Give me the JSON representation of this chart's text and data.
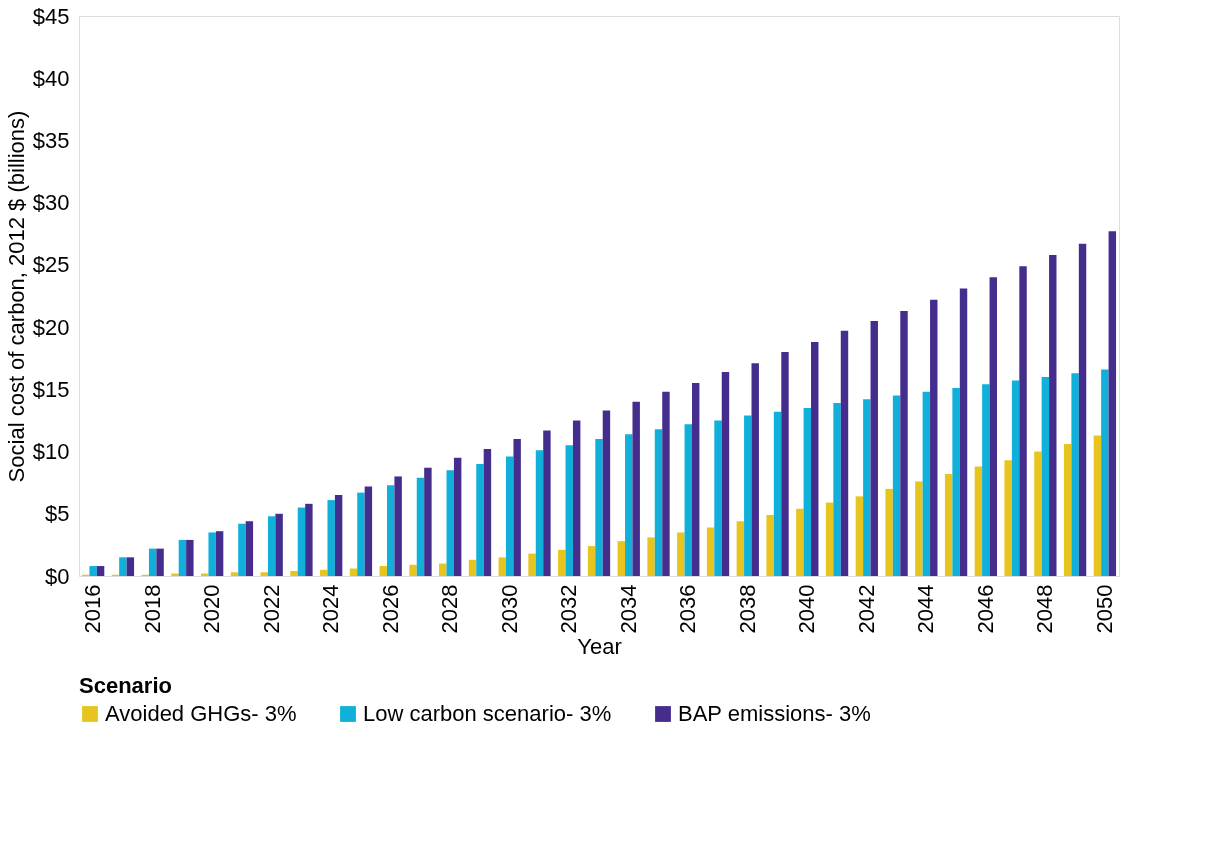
{
  "chart_data": {
    "type": "bar",
    "xlabel": "Year",
    "ylabel": "Social cost of carbon, 2012 $ (billions)",
    "legend_title": "Scenario",
    "legend": "bottom",
    "grid": false,
    "categories": [
      "2016",
      null,
      "2018",
      null,
      "2020",
      null,
      "2022",
      null,
      "2024",
      null,
      "2026",
      null,
      "2028",
      null,
      "2030",
      null,
      "2032",
      null,
      "2034",
      null,
      "2036",
      null,
      "2038",
      null,
      "2040",
      null,
      "2042",
      null,
      "2044",
      null,
      "2046",
      null,
      "2048",
      null,
      "2050"
    ],
    "ylim": [
      0,
      45
    ],
    "yticks": [
      {
        "value": 0,
        "label": "$0"
      },
      {
        "value": 5,
        "label": "$5"
      },
      {
        "value": 10,
        "label": "$10"
      },
      {
        "value": 15,
        "label": "$15"
      },
      {
        "value": 20,
        "label": "$20"
      },
      {
        "value": 25,
        "label": "$25"
      },
      {
        "value": 30,
        "label": "$30"
      },
      {
        "value": 35,
        "label": "$35"
      },
      {
        "value": 40,
        "label": "$40"
      },
      {
        "value": 45,
        "label": "$45"
      }
    ],
    "series": [
      {
        "name": "Avoided GHGs- 3%",
        "color": "#e8c51e",
        "values": [
          0.1,
          0.1,
          0.1,
          0.2,
          0.2,
          0.3,
          0.3,
          0.4,
          0.5,
          0.6,
          0.8,
          0.9,
          1.0,
          1.3,
          1.5,
          1.8,
          2.1,
          2.4,
          2.8,
          3.1,
          3.5,
          3.9,
          4.4,
          4.9,
          5.4,
          5.9,
          6.4,
          7.0,
          7.6,
          8.2,
          8.8,
          9.3,
          10.0,
          10.6,
          11.3
        ]
      },
      {
        "name": "Low carbon scenario- 3%",
        "color": "#10b0db",
        "values": [
          0.8,
          1.5,
          2.2,
          2.9,
          3.5,
          4.2,
          4.8,
          5.5,
          6.1,
          6.7,
          7.3,
          7.9,
          8.5,
          9.0,
          9.6,
          10.1,
          10.5,
          11.0,
          11.4,
          11.8,
          12.2,
          12.5,
          12.9,
          13.2,
          13.5,
          13.9,
          14.2,
          14.5,
          14.8,
          15.1,
          15.4,
          15.7,
          16.0,
          16.3,
          16.6
        ]
      },
      {
        "name": "BAP emissions- 3%",
        "color": "#452d8e",
        "values": [
          0.8,
          1.5,
          2.2,
          2.9,
          3.6,
          4.4,
          5.0,
          5.8,
          6.5,
          7.2,
          8.0,
          8.7,
          9.5,
          10.2,
          11.0,
          11.7,
          12.5,
          13.3,
          14.0,
          14.8,
          15.5,
          16.4,
          17.1,
          18.0,
          18.8,
          19.7,
          20.5,
          21.3,
          22.2,
          23.1,
          24.0,
          24.9,
          25.8,
          26.7,
          27.7
        ]
      }
    ]
  }
}
